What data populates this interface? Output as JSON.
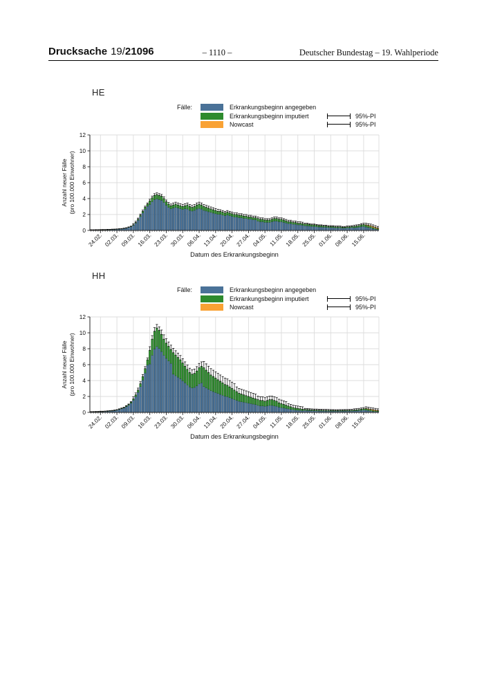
{
  "header": {
    "doc_label": "Drucksache",
    "doc_prefix": "19/",
    "doc_number": "21096",
    "page_number": "– 1110 –",
    "right_text": "Deutscher Bundestag – 19. Wahlperiode"
  },
  "legend": {
    "cases_label": "Fälle:",
    "items": [
      {
        "label": "Erkrankungsbeginn angegeben",
        "color": "#4a7298"
      },
      {
        "label": "Erkrankungsbeginn imputiert",
        "color": "#2e8b2e"
      },
      {
        "label": "Nowcast",
        "color": "#f9a234"
      }
    ],
    "pi_label": "95%-PI"
  },
  "colors": {
    "blue": "#4a7298",
    "blue_edge": "#1e3a52",
    "green": "#2e8b2e",
    "green_edge": "#1c521c",
    "orange": "#f9a234",
    "orange_edge": "#9a5d10",
    "grid": "#dcdcdc",
    "axis": "#222222",
    "whisker": "#101010"
  },
  "chart_data": [
    {
      "type": "bar",
      "stacked": true,
      "title": "HE",
      "ylabel_line1": "Anzahl neuer Fälle",
      "ylabel_line2": "(pro 100.000 Einwohner)",
      "xlabel": "Datum des Erkrankungsbeginn",
      "ylim": [
        0,
        12
      ],
      "yticks": [
        0,
        2,
        4,
        6,
        8,
        10,
        12
      ],
      "x_unit": "day",
      "n_days": 123,
      "xtick_labels": [
        "24.02.",
        "02.03.",
        "09.03.",
        "16.03.",
        "23.03.",
        "30.03.",
        "06.04.",
        "13.04.",
        "20.04.",
        "27.04.",
        "04.05.",
        "11.05.",
        "18.05.",
        "25.05.",
        "01.06.",
        "08.06.",
        "15.06."
      ],
      "xtick_day_index": [
        4,
        11,
        18,
        25,
        32,
        39,
        46,
        53,
        60,
        67,
        74,
        81,
        88,
        95,
        102,
        109,
        116
      ],
      "total": [
        0.05,
        0.05,
        0.06,
        0.06,
        0.07,
        0.08,
        0.08,
        0.1,
        0.1,
        0.12,
        0.13,
        0.15,
        0.18,
        0.2,
        0.25,
        0.3,
        0.4,
        0.5,
        0.7,
        1.0,
        1.4,
        1.9,
        2.4,
        2.9,
        3.3,
        3.7,
        4.1,
        4.4,
        4.5,
        4.4,
        4.3,
        4.0,
        3.6,
        3.3,
        3.1,
        3.2,
        3.3,
        3.2,
        3.1,
        3.0,
        3.1,
        3.2,
        3.0,
        2.9,
        3.0,
        3.2,
        3.3,
        3.2,
        3.0,
        2.9,
        2.8,
        2.7,
        2.6,
        2.5,
        2.4,
        2.4,
        2.3,
        2.2,
        2.3,
        2.2,
        2.1,
        2.0,
        2.0,
        1.9,
        1.9,
        1.8,
        1.8,
        1.7,
        1.7,
        1.6,
        1.6,
        1.5,
        1.4,
        1.4,
        1.3,
        1.3,
        1.3,
        1.4,
        1.5,
        1.5,
        1.4,
        1.4,
        1.3,
        1.2,
        1.1,
        1.1,
        1.0,
        1.0,
        0.9,
        0.9,
        0.85,
        0.8,
        0.8,
        0.75,
        0.7,
        0.7,
        0.65,
        0.6,
        0.6,
        0.55,
        0.55,
        0.5,
        0.5,
        0.5,
        0.45,
        0.45,
        0.45,
        0.4,
        0.4,
        0.45,
        0.45,
        0.5,
        0.5,
        0.55,
        0.6,
        0.7,
        0.75,
        0.7,
        0.65,
        0.6,
        0.5,
        0.4,
        0.3
      ],
      "series": [
        {
          "name": "Erkrankungsbeginn angegeben",
          "color": "#4a7298",
          "note": "values = total - imputiert - nowcast"
        },
        {
          "name": "Erkrankungsbeginn imputiert",
          "color": "#2e8b2e",
          "values": [
            0,
            0,
            0,
            0,
            0.01,
            0.01,
            0.01,
            0.01,
            0.01,
            0.01,
            0.01,
            0.01,
            0.01,
            0.02,
            0.02,
            0.02,
            0.03,
            0.04,
            0.06,
            0.08,
            0.11,
            0.15,
            0.19,
            0.23,
            0.26,
            0.44,
            0.49,
            0.53,
            0.54,
            0.53,
            0.52,
            0.48,
            0.43,
            0.4,
            0.37,
            0.38,
            0.4,
            0.38,
            0.37,
            0.36,
            0.37,
            0.51,
            0.48,
            0.46,
            0.48,
            0.51,
            0.53,
            0.51,
            0.48,
            0.46,
            0.45,
            0.43,
            0.42,
            0.4,
            0.38,
            0.38,
            0.37,
            0.35,
            0.37,
            0.35,
            0.34,
            0.32,
            0.32,
            0.3,
            0.3,
            0.29,
            0.29,
            0.27,
            0.27,
            0.26,
            0.26,
            0.33,
            0.31,
            0.31,
            0.29,
            0.29,
            0.29,
            0.31,
            0.33,
            0.33,
            0.31,
            0.31,
            0.29,
            0.26,
            0.24,
            0.24,
            0.22,
            0.22,
            0.2,
            0.2,
            0.19,
            0.22,
            0.22,
            0.21,
            0.2,
            0.2,
            0.18,
            0.17,
            0.17,
            0.15,
            0.15,
            0.14,
            0.14,
            0.14,
            0.13,
            0.13,
            0.13,
            0.11,
            0.11,
            0.13,
            0.13,
            0.14,
            0.16,
            0.18,
            0.19,
            0.22,
            0.24,
            0.22,
            0.21,
            0.19,
            0.16,
            0.13,
            0.1
          ]
        },
        {
          "name": "Nowcast",
          "color": "#f9a234",
          "start_index": 117,
          "values": [
            0.05,
            0.08,
            0.1,
            0.12,
            0.1,
            0.08
          ]
        }
      ],
      "pi95_runs": [
        [
          0.04,
          18
        ],
        [
          0.15,
          7
        ],
        [
          0.22,
          10
        ],
        [
          0.25,
          20
        ],
        [
          0.2,
          16
        ],
        [
          0.18,
          20
        ],
        [
          0.1,
          21
        ],
        [
          0.15,
          5
        ],
        [
          0.2,
          6
        ]
      ]
    },
    {
      "type": "bar",
      "stacked": true,
      "title": "HH",
      "ylabel_line1": "Anzahl neuer Fälle",
      "ylabel_line2": "(pro 100.000 Einwohner)",
      "xlabel": "Datum des Erkrankungsbeginn",
      "ylim": [
        0,
        12
      ],
      "yticks": [
        0,
        2,
        4,
        6,
        8,
        10,
        12
      ],
      "x_unit": "day",
      "n_days": 123,
      "xtick_labels": [
        "24.02.",
        "02.03.",
        "09.03.",
        "16.03.",
        "23.03.",
        "30.03.",
        "06.04.",
        "13.04.",
        "20.04.",
        "27.04.",
        "04.05.",
        "11.05.",
        "18.05.",
        "25.05.",
        "01.06.",
        "08.06.",
        "15.06."
      ],
      "xtick_day_index": [
        4,
        11,
        18,
        25,
        32,
        39,
        46,
        53,
        60,
        67,
        74,
        81,
        88,
        95,
        102,
        109,
        116
      ],
      "total": [
        0.05,
        0.06,
        0.07,
        0.08,
        0.1,
        0.1,
        0.12,
        0.15,
        0.18,
        0.2,
        0.25,
        0.3,
        0.4,
        0.5,
        0.6,
        0.8,
        1.0,
        1.3,
        1.7,
        2.2,
        2.8,
        3.6,
        4.5,
        5.5,
        6.6,
        7.8,
        9.2,
        10.2,
        10.6,
        10.3,
        9.8,
        9.2,
        8.7,
        8.3,
        7.9,
        7.5,
        7.2,
        6.9,
        6.6,
        6.2,
        5.8,
        5.4,
        5.0,
        4.8,
        4.9,
        5.2,
        5.6,
        5.8,
        5.6,
        5.3,
        5.0,
        4.7,
        4.5,
        4.3,
        4.1,
        3.9,
        3.7,
        3.5,
        3.4,
        3.2,
        3.0,
        2.8,
        2.6,
        2.4,
        2.3,
        2.2,
        2.1,
        2.0,
        1.9,
        1.8,
        1.7,
        1.6,
        1.5,
        1.5,
        1.4,
        1.5,
        1.6,
        1.6,
        1.5,
        1.4,
        1.2,
        1.1,
        1.0,
        0.9,
        0.8,
        0.7,
        0.6,
        0.55,
        0.5,
        0.45,
        0.4,
        0.38,
        0.36,
        0.34,
        0.32,
        0.3,
        0.3,
        0.28,
        0.28,
        0.26,
        0.26,
        0.25,
        0.25,
        0.25,
        0.24,
        0.24,
        0.25,
        0.25,
        0.26,
        0.26,
        0.27,
        0.28,
        0.3,
        0.32,
        0.35,
        0.4,
        0.45,
        0.5,
        0.45,
        0.4,
        0.35,
        0.3,
        0.25
      ],
      "series": [
        {
          "name": "Erkrankungsbeginn angegeben",
          "color": "#4a7298",
          "note": "values = total - imputiert - nowcast"
        },
        {
          "name": "Erkrankungsbeginn imputiert",
          "color": "#2e8b2e",
          "values": [
            0.01,
            0.01,
            0.01,
            0.01,
            0.01,
            0.01,
            0.01,
            0.02,
            0.02,
            0.02,
            0.03,
            0.03,
            0.04,
            0.05,
            0.06,
            0.08,
            0.1,
            0.13,
            0.17,
            0.22,
            0.28,
            0.36,
            0.45,
            0.55,
            0.66,
            1.72,
            2.02,
            2.24,
            2.33,
            2.27,
            2.16,
            2.02,
            1.91,
            1.83,
            1.74,
            2.7,
            2.59,
            2.48,
            2.38,
            2.23,
            2.09,
            1.94,
            1.8,
            1.73,
            1.76,
            1.87,
            2.02,
            2.09,
            2.35,
            2.23,
            2.1,
            1.97,
            1.89,
            1.81,
            1.72,
            1.64,
            1.55,
            1.47,
            1.43,
            1.34,
            1.26,
            1.18,
            1.09,
            1.01,
            0.97,
            0.92,
            0.88,
            0.84,
            0.8,
            0.76,
            0.71,
            0.72,
            0.68,
            0.68,
            0.63,
            0.68,
            0.72,
            0.72,
            0.68,
            0.63,
            0.54,
            0.5,
            0.45,
            0.41,
            0.36,
            0.32,
            0.27,
            0.25,
            0.23,
            0.2,
            0.18,
            0.13,
            0.13,
            0.12,
            0.11,
            0.11,
            0.11,
            0.1,
            0.1,
            0.09,
            0.09,
            0.09,
            0.09,
            0.09,
            0.08,
            0.08,
            0.09,
            0.09,
            0.09,
            0.09,
            0.09,
            0.1,
            0.11,
            0.11,
            0.12,
            0.14,
            0.16,
            0.18,
            0.16,
            0.14,
            0.12,
            0.11,
            0.09
          ]
        },
        {
          "name": "Nowcast",
          "color": "#f9a234",
          "start_index": 117,
          "values": [
            0.04,
            0.06,
            0.08,
            0.1,
            0.08,
            0.06
          ]
        }
      ],
      "pi95_runs": [
        [
          0.05,
          18
        ],
        [
          0.25,
          7
        ],
        [
          0.45,
          5
        ],
        [
          0.55,
          11
        ],
        [
          0.55,
          7
        ],
        [
          0.8,
          14
        ],
        [
          0.6,
          9
        ],
        [
          0.45,
          13
        ],
        [
          0.3,
          7
        ],
        [
          0.12,
          11
        ],
        [
          0.1,
          10
        ],
        [
          0.15,
          5
        ],
        [
          0.2,
          6
        ]
      ]
    }
  ]
}
